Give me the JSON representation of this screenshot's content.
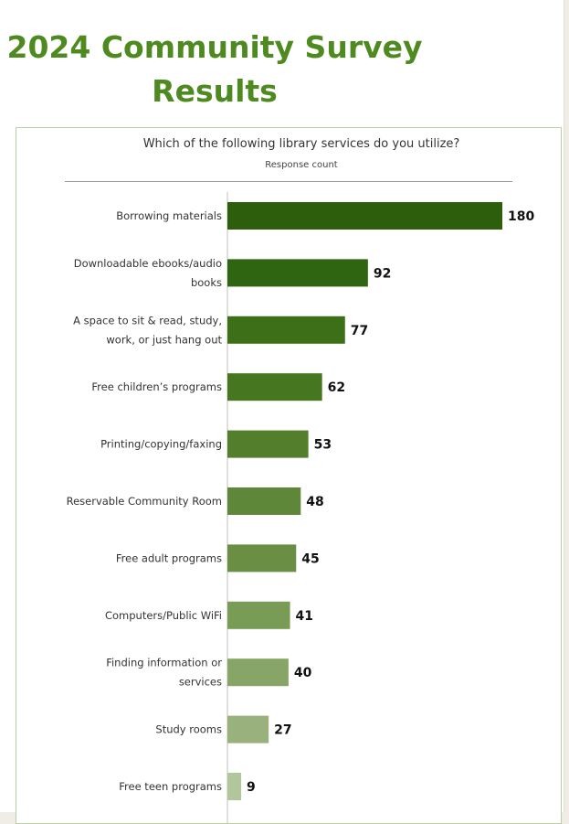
{
  "header": {
    "title": "2024 Community Survey Results"
  },
  "chart_data": {
    "type": "bar",
    "orientation": "horizontal",
    "title": "Which of the following library services do you utilize?",
    "subtitle": "Response count",
    "categories": [
      [
        "Borrowing materials"
      ],
      [
        "Downloadable ebooks/audio",
        "books"
      ],
      [
        "A space to sit & read, study,",
        "work, or just hang out"
      ],
      [
        "Free children’s programs"
      ],
      [
        "Printing/copying/faxing"
      ],
      [
        "Reservable Community Room"
      ],
      [
        "Free adult programs"
      ],
      [
        "Computers/Public WiFi"
      ],
      [
        "Finding information or",
        "services"
      ],
      [
        "Study rooms"
      ],
      [
        "Free teen programs"
      ]
    ],
    "values": [
      180,
      92,
      77,
      62,
      53,
      48,
      45,
      41,
      40,
      27,
      9
    ],
    "bar_colors": [
      "#2d5e0c",
      "#2f6510",
      "#3c6f17",
      "#46761f",
      "#537f2c",
      "#5e873a",
      "#698e44",
      "#789b55",
      "#86a566",
      "#98b17d",
      "#b2c69c"
    ],
    "xlim": [
      0,
      180
    ],
    "grid": false,
    "legend": "none"
  }
}
